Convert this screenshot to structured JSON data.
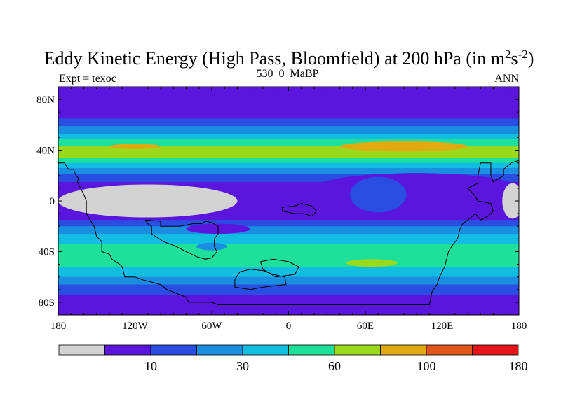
{
  "chart_data": {
    "type": "heatmap",
    "subtype": "filled-contour-map",
    "title_main": "Eddy Kinetic Energy (High Pass, Bloomfield) at 200 hPa (in m",
    "title_sup1": "2",
    "title_mid": "s",
    "title_sup2": "-2",
    "title_end": ")",
    "left_label": "Expt = texoc",
    "center_label": "530_0_MaBP",
    "right_label": "ANN",
    "x_range": [
      -180,
      180
    ],
    "y_range": [
      -90,
      90
    ],
    "x_ticks": [
      {
        "value": -180,
        "label": "180"
      },
      {
        "value": -120,
        "label": "120W"
      },
      {
        "value": -60,
        "label": "60W"
      },
      {
        "value": 0,
        "label": "0"
      },
      {
        "value": 60,
        "label": "60E"
      },
      {
        "value": 120,
        "label": "120E"
      },
      {
        "value": 180,
        "label": "180"
      }
    ],
    "y_ticks": [
      {
        "value": 80,
        "label": "80N"
      },
      {
        "value": 40,
        "label": "40N"
      },
      {
        "value": 0,
        "label": "0"
      },
      {
        "value": -40,
        "label": "40S"
      },
      {
        "value": -80,
        "label": "80S"
      }
    ],
    "levels": [
      {
        "color": "#d3d3d3",
        "label": ""
      },
      {
        "color": "#5a16dc",
        "label": "10"
      },
      {
        "color": "#2a4ee2",
        "label": ""
      },
      {
        "color": "#1a8ee0",
        "label": "30"
      },
      {
        "color": "#12bde2",
        "label": ""
      },
      {
        "color": "#1fe09a",
        "label": "60"
      },
      {
        "color": "#9ad91b",
        "label": ""
      },
      {
        "color": "#e0ab12",
        "label": "100"
      },
      {
        "color": "#e0551a",
        "label": ""
      },
      {
        "color": "#e5141a",
        "label": "180"
      }
    ],
    "zonal_bands": [
      {
        "lat": [
          80,
          90
        ],
        "level": 1
      },
      {
        "lat": [
          65,
          80
        ],
        "level": 1
      },
      {
        "lat": [
          59,
          65
        ],
        "level": 2
      },
      {
        "lat": [
          53,
          59
        ],
        "level": 3
      },
      {
        "lat": [
          49,
          53
        ],
        "level": 4
      },
      {
        "lat": [
          43,
          49
        ],
        "level": 5
      },
      {
        "lat": [
          34,
          43
        ],
        "level": 6
      },
      {
        "lat": [
          30,
          34
        ],
        "level": 5
      },
      {
        "lat": [
          26,
          30
        ],
        "level": 4
      },
      {
        "lat": [
          21,
          26
        ],
        "level": 3
      },
      {
        "lat": [
          15,
          21
        ],
        "level": 2
      },
      {
        "lat": [
          -15,
          15
        ],
        "level": 1
      },
      {
        "lat": [
          -20,
          -15
        ],
        "level": 2
      },
      {
        "lat": [
          -26,
          -20
        ],
        "level": 3
      },
      {
        "lat": [
          -34,
          -26
        ],
        "level": 4
      },
      {
        "lat": [
          -52,
          -34
        ],
        "level": 5
      },
      {
        "lat": [
          -60,
          -52
        ],
        "level": 4
      },
      {
        "lat": [
          -66,
          -60
        ],
        "level": 3
      },
      {
        "lat": [
          -74,
          -66
        ],
        "level": 2
      },
      {
        "lat": [
          -90,
          -74
        ],
        "level": 1
      }
    ],
    "regions": [
      {
        "level": 7,
        "lon": -120,
        "lat": 43,
        "rlon": 20,
        "rlat": 2
      },
      {
        "level": 7,
        "lon": 90,
        "lat": 43,
        "rlon": 50,
        "rlat": 4
      },
      {
        "level": 1,
        "lon": 100,
        "lat": 10,
        "rlon": 80,
        "rlat": 12
      },
      {
        "level": 2,
        "lon": 70,
        "lat": 5,
        "rlon": 22,
        "rlat": 14
      },
      {
        "level": 0,
        "lon": -110,
        "lat": 0,
        "rlon": 70,
        "rlat": 13
      },
      {
        "level": 0,
        "lon": 175,
        "lat": 0,
        "rlon": 8,
        "rlat": 14
      },
      {
        "level": 1,
        "lon": -55,
        "lat": -22,
        "rlon": 25,
        "rlat": 4
      },
      {
        "level": 3,
        "lon": -60,
        "lat": -36,
        "rlon": 12,
        "rlat": 3
      },
      {
        "level": 6,
        "lon": 65,
        "lat": -49,
        "rlon": 20,
        "rlat": 3
      }
    ],
    "coastlines": [
      [
        [
          -180,
          30
        ],
        [
          -175,
          30
        ],
        [
          -172,
          25
        ],
        [
          -168,
          25
        ],
        [
          -166,
          20
        ],
        [
          -164,
          18
        ],
        [
          -165,
          15
        ],
        [
          -160,
          5
        ],
        [
          -158,
          0
        ],
        [
          -158,
          -10
        ],
        [
          -155,
          -15
        ],
        [
          -152,
          -20
        ],
        [
          -150,
          -28
        ],
        [
          -146,
          -32
        ],
        [
          -146,
          -40
        ],
        [
          -140,
          -42
        ],
        [
          -138,
          -46
        ],
        [
          -132,
          -50
        ],
        [
          -130,
          -52
        ],
        [
          -128,
          -60
        ],
        [
          -120,
          -60
        ],
        [
          -115,
          -62
        ],
        [
          -100,
          -66
        ],
        [
          -95,
          -70
        ],
        [
          -90,
          -72
        ],
        [
          -80,
          -76
        ],
        [
          -78,
          -80
        ],
        [
          -60,
          -80
        ],
        [
          -55,
          -82
        ],
        [
          -40,
          -82
        ],
        [
          0,
          -82
        ],
        [
          40,
          -82
        ],
        [
          80,
          -82
        ],
        [
          110,
          -82
        ],
        [
          112,
          -72
        ],
        [
          116,
          -66
        ],
        [
          118,
          -60
        ],
        [
          122,
          -52
        ],
        [
          125,
          -40
        ],
        [
          128,
          -35
        ],
        [
          132,
          -30
        ],
        [
          134,
          -22
        ],
        [
          136,
          -18
        ],
        [
          140,
          -15
        ],
        [
          146,
          -10
        ],
        [
          150,
          -15
        ],
        [
          156,
          -12
        ],
        [
          160,
          -8
        ],
        [
          158,
          -2
        ],
        [
          148,
          0
        ],
        [
          145,
          5
        ],
        [
          140,
          10
        ],
        [
          148,
          14
        ],
        [
          148,
          20
        ],
        [
          150,
          30
        ],
        [
          158,
          30
        ],
        [
          158,
          20
        ],
        [
          160,
          15
        ],
        [
          168,
          20
        ],
        [
          168,
          25
        ],
        [
          174,
          30
        ],
        [
          180,
          32
        ]
      ],
      [
        [
          -112,
          -15
        ],
        [
          -100,
          -16
        ],
        [
          -100,
          -20
        ],
        [
          -85,
          -20
        ],
        [
          -75,
          -18
        ],
        [
          -68,
          -18
        ],
        [
          -65,
          -16
        ],
        [
          -60,
          -17
        ],
        [
          -55,
          -20
        ],
        [
          -55,
          -26
        ],
        [
          -58,
          -30
        ],
        [
          -58,
          -36
        ],
        [
          -56,
          -40
        ],
        [
          -60,
          -45
        ],
        [
          -65,
          -46
        ],
        [
          -72,
          -44
        ],
        [
          -80,
          -40
        ],
        [
          -90,
          -35
        ],
        [
          -98,
          -32
        ],
        [
          -104,
          -28
        ],
        [
          -107,
          -26
        ],
        [
          -107,
          -20
        ],
        [
          -110,
          -18
        ],
        [
          -112,
          -15
        ]
      ],
      [
        [
          -5,
          -5
        ],
        [
          5,
          -4
        ],
        [
          10,
          -2
        ],
        [
          18,
          -4
        ],
        [
          22,
          -8
        ],
        [
          18,
          -12
        ],
        [
          12,
          -10
        ],
        [
          5,
          -10
        ],
        [
          -5,
          -8
        ],
        [
          -5,
          -5
        ]
      ],
      [
        [
          -42,
          -62
        ],
        [
          -38,
          -56
        ],
        [
          -30,
          -54
        ],
        [
          -20,
          -55
        ],
        [
          -12,
          -58
        ],
        [
          -3,
          -60
        ],
        [
          -2,
          -66
        ],
        [
          -20,
          -68
        ],
        [
          -30,
          -70
        ],
        [
          -42,
          -68
        ],
        [
          -42,
          -62
        ]
      ],
      [
        [
          -22,
          -48
        ],
        [
          -12,
          -46
        ],
        [
          0,
          -48
        ],
        [
          8,
          -52
        ],
        [
          5,
          -58
        ],
        [
          -10,
          -60
        ],
        [
          -20,
          -54
        ],
        [
          -22,
          -48
        ]
      ]
    ]
  }
}
